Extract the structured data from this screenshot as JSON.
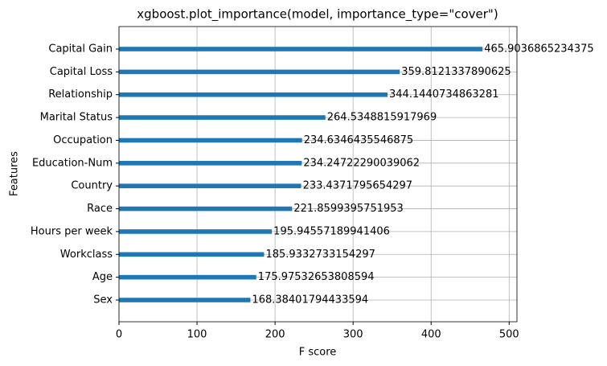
{
  "chart_data": {
    "type": "barh",
    "title": "xgboost.plot_importance(model, importance_type=\"cover\")",
    "x_label": "F score",
    "y_label": "Features",
    "categories": [
      "Capital Gain",
      "Capital Loss",
      "Relationship",
      "Marital Status",
      "Occupation",
      "Education-Num",
      "Country",
      "Race",
      "Hours per week",
      "Workclass",
      "Age",
      "Sex"
    ],
    "values": [
      465.9036865234375,
      359.8121337890625,
      344.1440734863281,
      264.5348815917969,
      234.6346435546875,
      234.24722290039062,
      233.4371795654297,
      221.8599395751953,
      195.94557189941406,
      185.9332733154297,
      175.97532653808594,
      168.38401794433594
    ],
    "color": "#1f77b4",
    "xlim": [
      0,
      510
    ],
    "xticks": [
      0,
      100,
      200,
      300,
      400,
      500
    ],
    "grid": true
  }
}
